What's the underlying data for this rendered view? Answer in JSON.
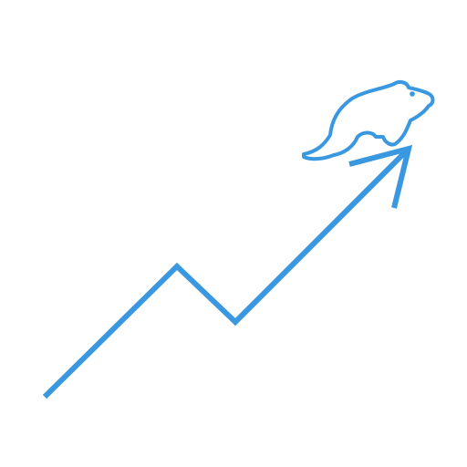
{
  "colors": {
    "background": "#ffffff",
    "stroke": "#3a98e0"
  },
  "icon": {
    "name": "trend-up-arrow-with-animal-icon",
    "parts": [
      "trend-line-icon",
      "arrow-head-icon",
      "animal-silhouette-icon"
    ]
  }
}
